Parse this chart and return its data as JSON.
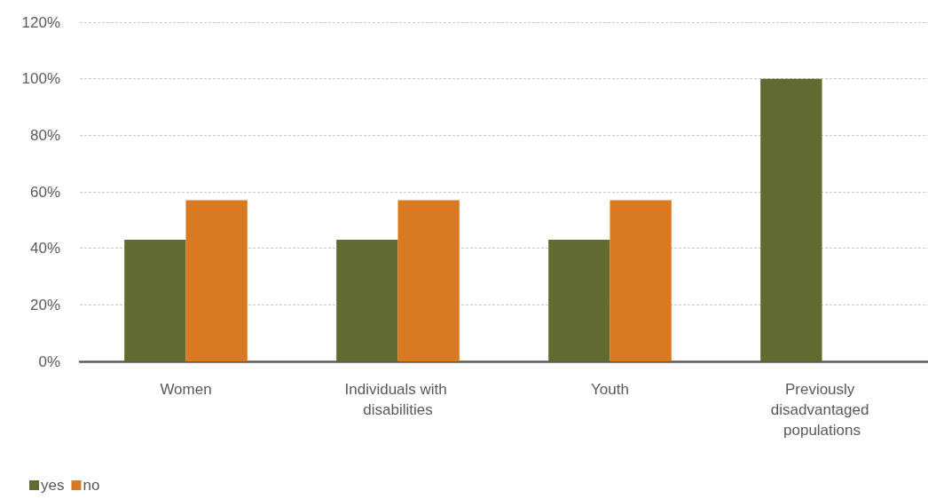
{
  "chart_data": {
    "type": "bar",
    "categories": [
      "Women",
      "Individuals with disabilities",
      "Youth",
      "Previously disadvantaged populations"
    ],
    "series": [
      {
        "name": "yes",
        "color": "#626b2f",
        "values": [
          43,
          43,
          43,
          100
        ]
      },
      {
        "name": "no",
        "color": "#d97a21",
        "values": [
          57,
          57,
          57,
          0
        ]
      }
    ],
    "ylim": [
      0,
      120
    ],
    "yticks": [
      {
        "value": 0,
        "label": "0%"
      },
      {
        "value": 20,
        "label": "20%"
      },
      {
        "value": 40,
        "label": "40%"
      },
      {
        "value": 60,
        "label": "60%"
      },
      {
        "value": 80,
        "label": "80%"
      },
      {
        "value": 100,
        "label": "100%"
      },
      {
        "value": 120,
        "label": "120%"
      }
    ],
    "grid": "y",
    "legend": "bottom left"
  }
}
